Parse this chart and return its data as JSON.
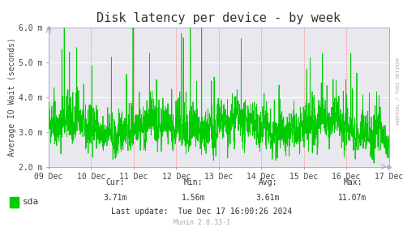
{
  "title": "Disk latency per device - by week",
  "ylabel": "Average IO Wait (seconds)",
  "background_color": "#ffffff",
  "plot_bg_color": "#e8e8ee",
  "line_color": "#00cc00",
  "ylim": [
    2.0,
    6.0
  ],
  "yticks": [
    2.0,
    3.0,
    4.0,
    5.0,
    6.0
  ],
  "ytick_labels": [
    "2.0 m",
    "3.0 m",
    "4.0 m",
    "5.0 m",
    "6.0 m"
  ],
  "xtick_labels": [
    "09 Dec",
    "10 Dec",
    "11 Dec",
    "12 Dec",
    "13 Dec",
    "14 Dec",
    "15 Dec",
    "16 Dec",
    "17 Dec"
  ],
  "num_points": 2016,
  "seed": 42,
  "cur_label": "Cur:",
  "cur_val": "3.71m",
  "min_label": "Min:",
  "min_val": "1.56m",
  "avg_label": "Avg:",
  "avg_val": "3.61m",
  "max_label": "Max:",
  "max_val": "11.07m",
  "last_update": "Last update:  Tue Dec 17 16:00:26 2024",
  "munin_version": "Munin 2.0.33-1",
  "legend_label": "sda",
  "watermark": "RRDTOOL / TOBI OETIKER",
  "title_fontsize": 11,
  "axis_label_fontsize": 7,
  "tick_fontsize": 7,
  "legend_fontsize": 8,
  "footer_fontsize": 7
}
